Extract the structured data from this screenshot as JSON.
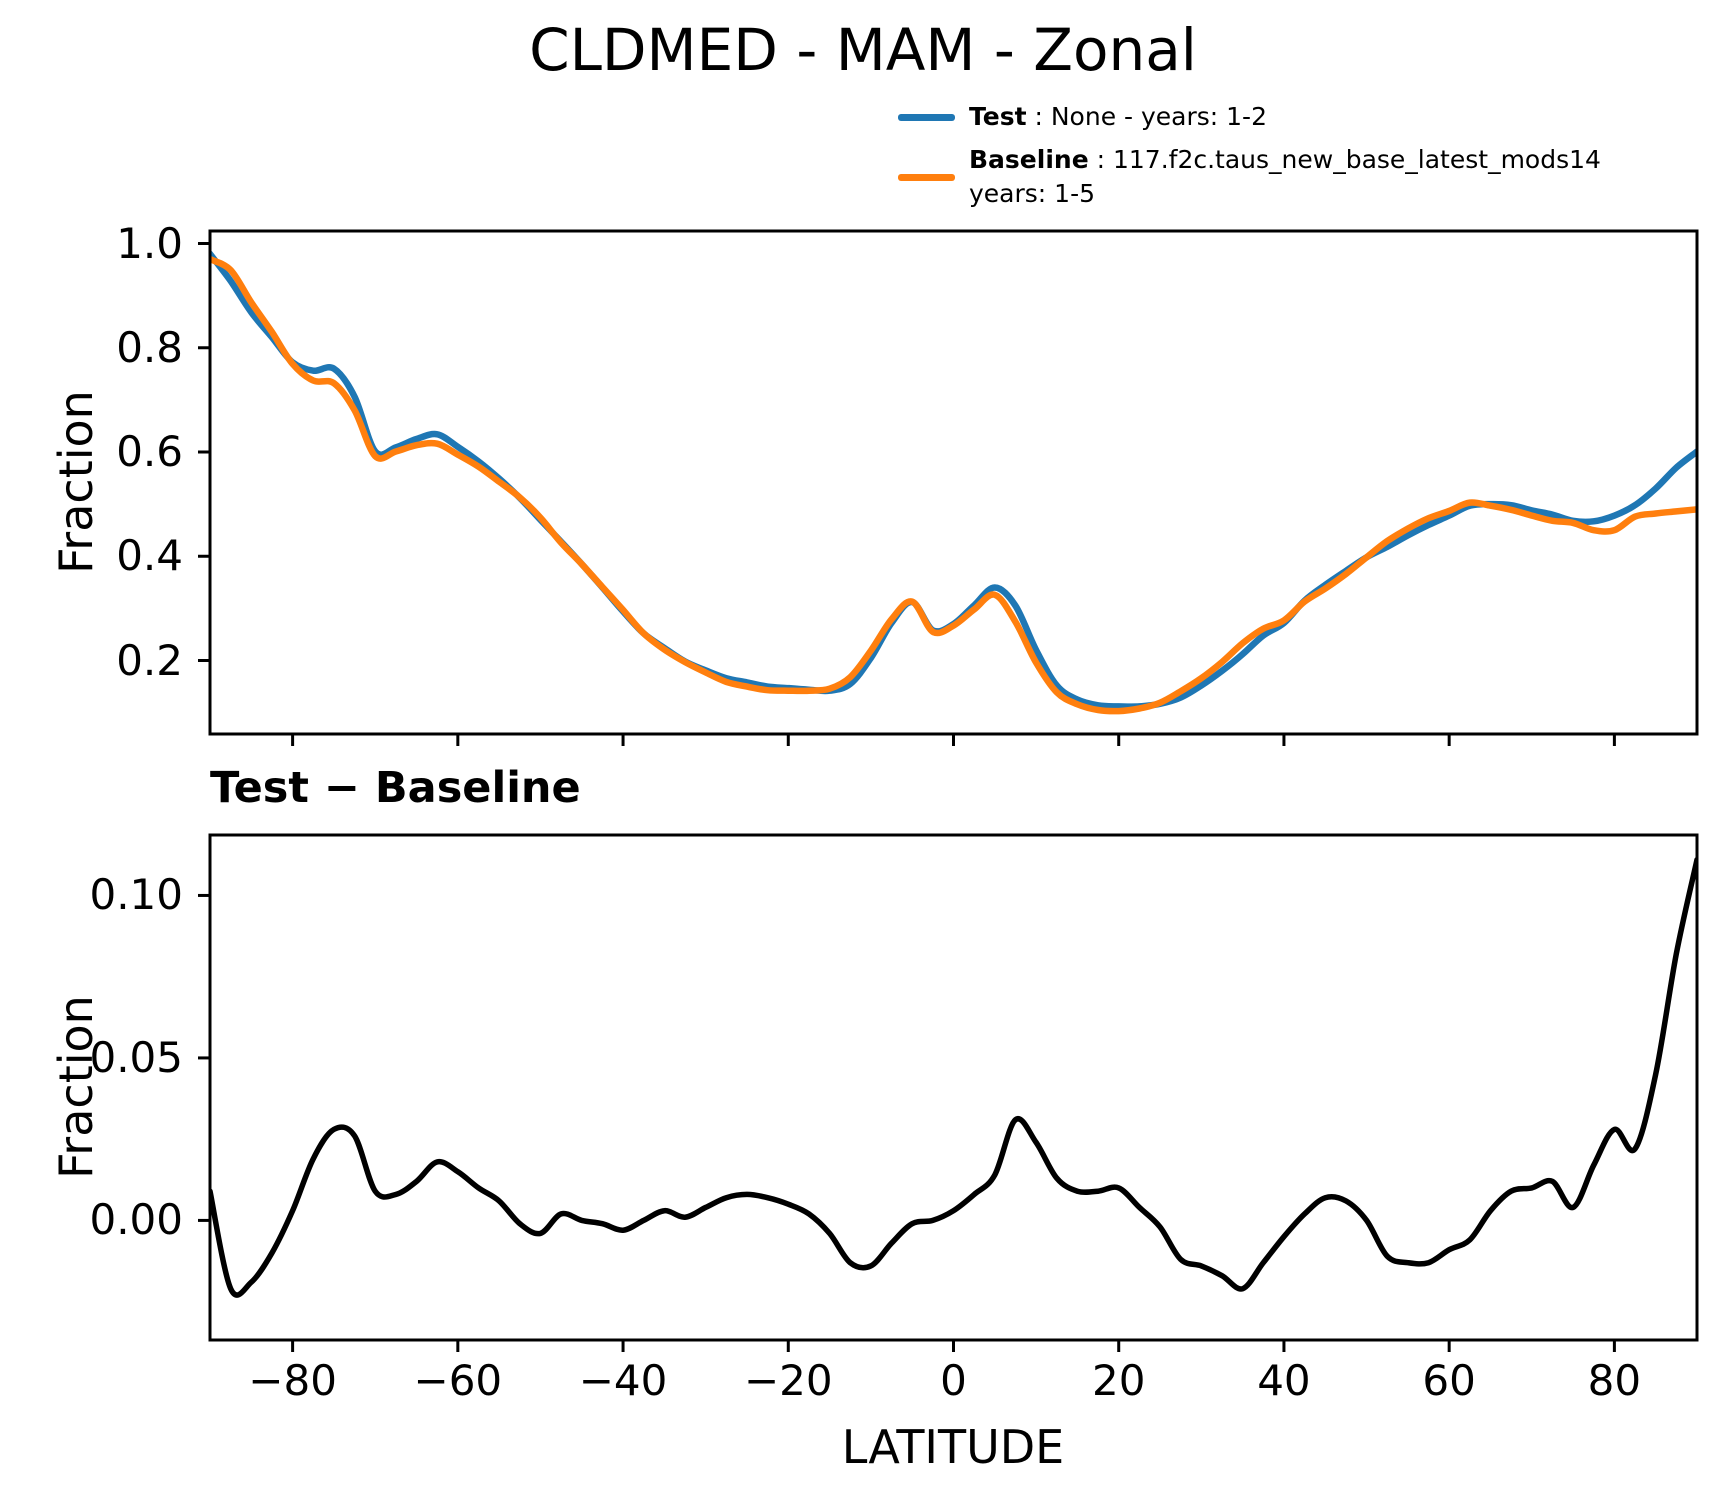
{
  "title": "CLDMED - MAM - Zonal",
  "legend": {
    "test_label": "Test",
    "test_rest": " : None - years: 1-2",
    "test_color": "#1f77b4",
    "baseline_label": "Baseline",
    "baseline_rest": " : 117.f2c.taus_new_base_latest_mods14",
    "baseline_rest2": "years: 1-5",
    "baseline_color": "#ff7f0e"
  },
  "subplot2_title": "Test − Baseline",
  "chart_data": [
    {
      "type": "line",
      "title": "CLDMED - MAM - Zonal",
      "ylabel": "Fraction",
      "xlabel": "",
      "legend_position": "upper right, above axes",
      "grid": false,
      "xlim": [
        -90,
        90
      ],
      "ylim": [
        0.059,
        1.024
      ],
      "x": [
        -90,
        -87.5,
        -85,
        -82.5,
        -80,
        -77.5,
        -75,
        -72.5,
        -70,
        -67.5,
        -65,
        -62.5,
        -60,
        -57.5,
        -55,
        -52.5,
        -50,
        -47.5,
        -45,
        -42.5,
        -40,
        -37.5,
        -35,
        -32.5,
        -30,
        -27.5,
        -25,
        -22.5,
        -20,
        -17.5,
        -15,
        -12.5,
        -10,
        -7.5,
        -5,
        -2.5,
        0,
        2.5,
        5,
        7.5,
        10,
        12.5,
        15,
        17.5,
        20,
        22.5,
        25,
        27.5,
        30,
        32.5,
        35,
        37.5,
        40,
        42.5,
        45,
        47.5,
        50,
        52.5,
        55,
        57.5,
        60,
        62.5,
        65,
        67.5,
        70,
        72.5,
        75,
        77.5,
        80,
        82.5,
        85,
        87.5,
        90
      ],
      "series": [
        {
          "name": "Test",
          "color": "#1f77b4",
          "values": [
            0.98,
            0.928,
            0.868,
            0.82,
            0.772,
            0.756,
            0.76,
            0.706,
            0.601,
            0.609,
            0.625,
            0.634,
            0.61,
            0.582,
            0.549,
            0.512,
            0.47,
            0.428,
            0.385,
            0.34,
            0.294,
            0.252,
            0.224,
            0.198,
            0.181,
            0.166,
            0.158,
            0.15,
            0.147,
            0.144,
            0.142,
            0.155,
            0.205,
            0.272,
            0.312,
            0.258,
            0.27,
            0.306,
            0.34,
            0.305,
            0.22,
            0.152,
            0.125,
            0.114,
            0.112,
            0.112,
            0.117,
            0.129,
            0.152,
            0.18,
            0.212,
            0.248,
            0.272,
            0.315,
            0.345,
            0.372,
            0.398,
            0.418,
            0.44,
            0.46,
            0.478,
            0.497,
            0.5,
            0.498,
            0.488,
            0.48,
            0.468,
            0.467,
            0.478,
            0.498,
            0.53,
            0.57,
            0.601
          ]
        },
        {
          "name": "Baseline",
          "color": "#ff7f0e",
          "values": [
            0.97,
            0.949,
            0.887,
            0.83,
            0.769,
            0.737,
            0.732,
            0.68,
            0.592,
            0.601,
            0.613,
            0.616,
            0.595,
            0.572,
            0.543,
            0.513,
            0.474,
            0.426,
            0.385,
            0.341,
            0.297,
            0.252,
            0.221,
            0.197,
            0.177,
            0.159,
            0.15,
            0.143,
            0.142,
            0.142,
            0.146,
            0.168,
            0.219,
            0.279,
            0.313,
            0.255,
            0.267,
            0.298,
            0.326,
            0.274,
            0.196,
            0.139,
            0.116,
            0.105,
            0.103,
            0.108,
            0.119,
            0.141,
            0.166,
            0.197,
            0.233,
            0.261,
            0.277,
            0.313,
            0.338,
            0.366,
            0.398,
            0.429,
            0.453,
            0.473,
            0.487,
            0.503,
            0.497,
            0.489,
            0.478,
            0.468,
            0.464,
            0.45,
            0.45,
            0.476,
            0.482,
            0.486,
            0.49
          ]
        }
      ],
      "yticks": {
        "values": [
          1.0,
          0.8,
          0.6,
          0.4,
          0.2
        ],
        "labels": [
          "1.0",
          "0.8",
          "0.6",
          "0.4",
          "0.2"
        ]
      },
      "xticks": {
        "values": [
          -80,
          -60,
          -40,
          -20,
          0,
          20,
          40,
          60,
          80
        ],
        "labels": []
      }
    },
    {
      "type": "line",
      "title": "Test − Baseline",
      "ylabel": "Fraction",
      "xlabel": "LATITUDE",
      "grid": false,
      "xlim": [
        -90,
        90
      ],
      "ylim": [
        -0.0368,
        0.1186
      ],
      "x": [
        -90,
        -87.5,
        -85,
        -82.5,
        -80,
        -77.5,
        -75,
        -72.5,
        -70,
        -67.5,
        -65,
        -62.5,
        -60,
        -57.5,
        -55,
        -52.5,
        -50,
        -47.5,
        -45,
        -42.5,
        -40,
        -37.5,
        -35,
        -32.5,
        -30,
        -27.5,
        -25,
        -22.5,
        -20,
        -17.5,
        -15,
        -12.5,
        -10,
        -7.5,
        -5,
        -2.5,
        0,
        2.5,
        5,
        7.5,
        10,
        12.5,
        15,
        17.5,
        20,
        22.5,
        25,
        27.5,
        30,
        32.5,
        35,
        37.5,
        40,
        42.5,
        45,
        47.5,
        50,
        52.5,
        55,
        57.5,
        60,
        62.5,
        65,
        67.5,
        70,
        72.5,
        75,
        77.5,
        80,
        82.5,
        85,
        87.5,
        90
      ],
      "series": [
        {
          "name": "Test − Baseline",
          "color": "#000000",
          "values": [
            0.009,
            -0.021,
            -0.019,
            -0.01,
            0.003,
            0.019,
            0.028,
            0.026,
            0.009,
            0.008,
            0.012,
            0.018,
            0.015,
            0.01,
            0.006,
            -0.001,
            -0.004,
            0.002,
            0.0,
            -0.001,
            -0.003,
            0.0,
            0.003,
            0.001,
            0.004,
            0.007,
            0.008,
            0.007,
            0.005,
            0.002,
            -0.004,
            -0.013,
            -0.014,
            -0.007,
            -0.001,
            0.0,
            0.003,
            0.008,
            0.014,
            0.031,
            0.024,
            0.013,
            0.009,
            0.009,
            0.01,
            0.004,
            -0.002,
            -0.012,
            -0.014,
            -0.017,
            -0.021,
            -0.013,
            -0.005,
            0.002,
            0.007,
            0.006,
            0.0,
            -0.011,
            -0.013,
            -0.013,
            -0.009,
            -0.006,
            0.003,
            0.009,
            0.01,
            0.012,
            0.004,
            0.017,
            0.028,
            0.022,
            0.045,
            0.082,
            0.111
          ]
        }
      ],
      "yticks": {
        "values": [
          0.1,
          0.05,
          0.0
        ],
        "labels": [
          "0.10",
          "0.05",
          "0.00"
        ]
      },
      "xticks": {
        "values": [
          -80,
          -60,
          -40,
          -20,
          0,
          20,
          40,
          60,
          80
        ],
        "labels": [
          "−80",
          "−60",
          "−40",
          "−20",
          "0",
          "20",
          "40",
          "60",
          "80"
        ]
      }
    }
  ]
}
